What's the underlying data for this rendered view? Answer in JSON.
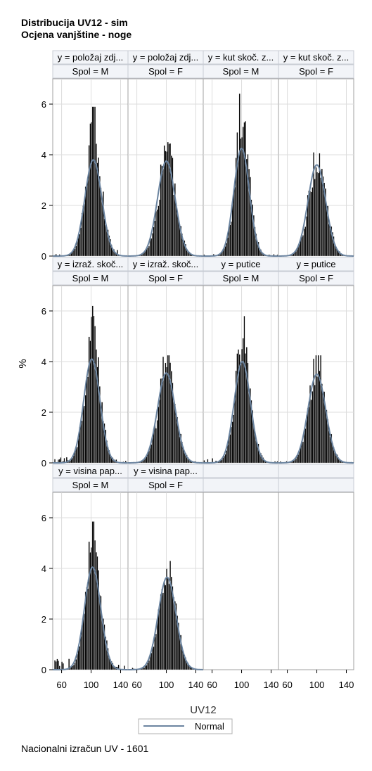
{
  "title_lines": [
    "Distribucija UV12 - sim",
    "Ocjena vanjštine - noge"
  ],
  "footer": "Nacionalni izračun UV - 1601",
  "chart_data": {
    "type": "histogram-panel",
    "xlabel": "UV12",
    "ylabel": "%",
    "xlim": [
      48,
      150
    ],
    "ylim": [
      0,
      7
    ],
    "xticks": [
      60,
      100,
      140
    ],
    "yticks": [
      0,
      2,
      4,
      6
    ],
    "grid": true,
    "legend": {
      "position": "bottom-center",
      "entries": [
        "Normal"
      ]
    },
    "colors": {
      "bars": "#000000",
      "bar_outline": "#ffffff",
      "normal_curve": "#6b84a0",
      "header_bg": "#f2f4f8",
      "grid": "#dcdcdc"
    },
    "panels": [
      {
        "header1": "y = položaj zdj...",
        "header2": "Spol = M",
        "normal": {
          "mean": 103,
          "sd": 11.5,
          "peak": 3.8
        },
        "max_bar": 5.9,
        "tail_left": 0.08,
        "tail_right": 0.5
      },
      {
        "header1": "y = položaj zdj...",
        "header2": "Spol = F",
        "normal": {
          "mean": 100,
          "sd": 12,
          "peak": 3.75
        },
        "max_bar": 4.5,
        "tail_left": 0.0,
        "tail_right": 0.0
      },
      {
        "header1": "y = kut skoč. z...",
        "header2": "Spol = M",
        "normal": {
          "mean": 100,
          "sd": 10.5,
          "peak": 4.25
        },
        "max_bar": 6.85,
        "tail_left": 0.08,
        "tail_right": 0.1
      },
      {
        "header1": "y = kut skoč. z...",
        "header2": "Spol = F",
        "normal": {
          "mean": 100,
          "sd": 12,
          "peak": 3.6
        },
        "max_bar": 4.1,
        "tail_left": 0.0,
        "tail_right": 0.0
      },
      {
        "header1": "y = izraž. skoč...",
        "header2": "Spol = M",
        "normal": {
          "mean": 101,
          "sd": 11,
          "peak": 4.1
        },
        "max_bar": 6.2,
        "tail_left": 0.25,
        "tail_right": 0.2
      },
      {
        "header1": "y = izraž. skoč...",
        "header2": "Spol = F",
        "normal": {
          "mean": 100,
          "sd": 12,
          "peak": 3.55
        },
        "max_bar": 4.25,
        "tail_left": 0.05,
        "tail_right": 0.1
      },
      {
        "header1": "y = putice",
        "header2": "Spol = M",
        "normal": {
          "mean": 101,
          "sd": 11,
          "peak": 4.0
        },
        "max_bar": 5.8,
        "tail_left": 0.25,
        "tail_right": 0.1
      },
      {
        "header1": "y = putice",
        "header2": "Spol = F",
        "normal": {
          "mean": 100,
          "sd": 12,
          "peak": 3.5
        },
        "max_bar": 4.25,
        "tail_left": 0.12,
        "tail_right": 0.05
      },
      {
        "header1": "y = visina pap...",
        "header2": "Spol = M",
        "normal": {
          "mean": 102,
          "sd": 11,
          "peak": 4.05
        },
        "max_bar": 5.85,
        "tail_left": 0.45,
        "tail_right": 0.3
      },
      {
        "header1": "y = visina pap...",
        "header2": "Spol = F",
        "normal": {
          "mean": 101,
          "sd": 12,
          "peak": 3.65
        },
        "max_bar": 4.3,
        "tail_left": 0.08,
        "tail_right": 0.0
      }
    ]
  }
}
